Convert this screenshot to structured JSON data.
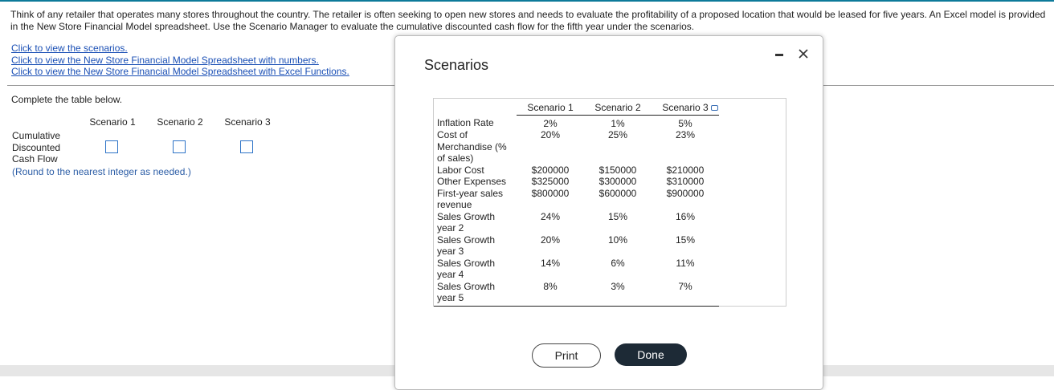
{
  "question": {
    "text": "Think of any retailer that operates many stores throughout the country. The retailer is often seeking to open new stores and needs to evaluate the profitability of a proposed location that would be leased for five years. An Excel model is provided in the New Store Financial Model spreadsheet. Use the Scenario Manager to evaluate the cumulative discounted cash flow for the fifth year under the scenarios."
  },
  "links": [
    "Click to view the scenarios.",
    "Click to view the New Store Financial Model Spreadsheet with numbers.",
    "Click to view the New Store Financial Model Spreadsheet with Excel Functions."
  ],
  "instruction": "Complete the table below.",
  "answer_table": {
    "columns": [
      "Scenario 1",
      "Scenario 2",
      "Scenario 3"
    ],
    "row_label": "Cumulative Discounted Cash Flow"
  },
  "note": "(Round to the nearest integer as needed.)",
  "dialog": {
    "title": "Scenarios",
    "table": {
      "header": [
        "Scenario 1",
        "Scenario 2",
        "Scenario 3"
      ],
      "rows": [
        [
          "Inflation Rate",
          "2%",
          "1%",
          "5%"
        ],
        [
          "Cost of Merchandise (% of sales)",
          "20%",
          "25%",
          "23%"
        ],
        [
          "Labor Cost",
          "$200000",
          "$150000",
          "$210000"
        ],
        [
          "Other Expenses",
          "$325000",
          "$300000",
          "$310000"
        ],
        [
          "First-year sales revenue",
          "$800000",
          "$600000",
          "$900000"
        ],
        [
          "Sales Growth year 2",
          "24%",
          "15%",
          "16%"
        ],
        [
          "Sales Growth year 3",
          "20%",
          "10%",
          "15%"
        ],
        [
          "Sales Growth year 4",
          "14%",
          "6%",
          "11%"
        ],
        [
          "Sales Growth year 5",
          "8%",
          "3%",
          "7%"
        ]
      ]
    },
    "buttons": [
      "Print",
      "Done"
    ]
  }
}
